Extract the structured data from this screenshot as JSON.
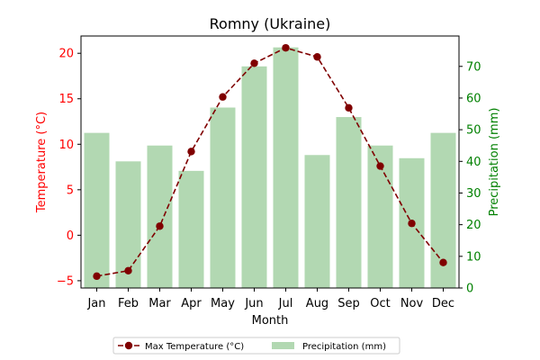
{
  "chart_data": {
    "type": "bar+line",
    "title": "Romny (Ukraine)",
    "xlabel": "Month",
    "categories": [
      "Jan",
      "Feb",
      "Mar",
      "Apr",
      "May",
      "Jun",
      "Jul",
      "Aug",
      "Sep",
      "Oct",
      "Nov",
      "Dec"
    ],
    "series": [
      {
        "name": "Max Temperature (°C)",
        "type": "line",
        "axis": "left",
        "color": "#800000",
        "values": [
          -4.5,
          -3.9,
          1.0,
          9.2,
          15.2,
          18.9,
          20.6,
          19.6,
          14.0,
          7.6,
          1.3,
          -3.0
        ]
      },
      {
        "name": "Precipitation (mm)",
        "type": "bar",
        "axis": "right",
        "color": "#b2d8b2",
        "values": [
          49,
          40,
          45,
          37,
          57,
          70,
          76,
          42,
          54,
          45,
          41,
          49
        ]
      }
    ],
    "y_left": {
      "label": "Temperature (°C)",
      "color": "#ff0000",
      "ylim": [
        -5.8,
        21.9
      ],
      "ticks": [
        -5,
        0,
        5,
        10,
        15,
        20
      ]
    },
    "y_right": {
      "label": "Precipitation (mm)",
      "color": "#008000",
      "ylim": [
        0,
        79.6
      ],
      "ticks": [
        0,
        10,
        20,
        30,
        40,
        50,
        60,
        70
      ]
    },
    "legend": "bottom-center",
    "grid": false
  }
}
